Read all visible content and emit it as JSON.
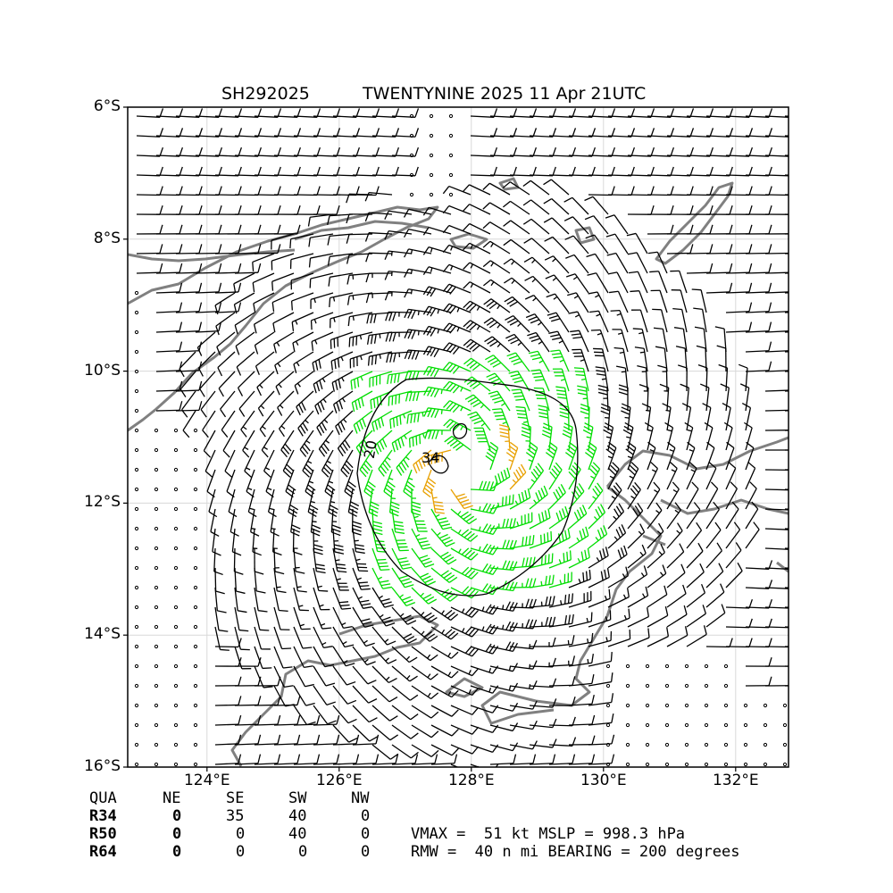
{
  "title": {
    "id": "SH292025",
    "name": "TWENTYNINE 2025 11 Apr 21UTC"
  },
  "axes": {
    "lat_labels": [
      "6°S",
      "8°S",
      "10°S",
      "12°S",
      "14°S",
      "16°S"
    ],
    "lat_values": [
      -6,
      -8,
      -10,
      -12,
      -14,
      -16
    ],
    "lon_labels": [
      "124°E",
      "126°E",
      "128°E",
      "130°E",
      "132°E"
    ],
    "lon_values": [
      124,
      126,
      128,
      130,
      132
    ],
    "lon_range": [
      122.8,
      132.8
    ],
    "lat_range": [
      -16,
      -6
    ],
    "grid": true
  },
  "storm": {
    "center_lon": 127.9,
    "center_lat": -11.5,
    "contour_labels": [
      "20",
      "34"
    ]
  },
  "colors": {
    "wind_low": "#000000",
    "wind_34": "#00dd00",
    "wind_50": "#e8a000",
    "coast": "#808080"
  },
  "table": {
    "header": [
      "QUA",
      "NE",
      "SE",
      "SW",
      "NW"
    ],
    "rows": [
      {
        "label": "R34",
        "values": [
          "0",
          "35",
          "40",
          "0"
        ]
      },
      {
        "label": "R50",
        "values": [
          "0",
          "0",
          "40",
          "0"
        ]
      },
      {
        "label": "R64",
        "values": [
          "0",
          "0",
          "0",
          "0"
        ]
      }
    ]
  },
  "summary": {
    "line1": "VMAX =  51 kt MSLP = 998.3 hPa",
    "line2": "RMW =  40 n mi BEARING = 200 degrees"
  }
}
